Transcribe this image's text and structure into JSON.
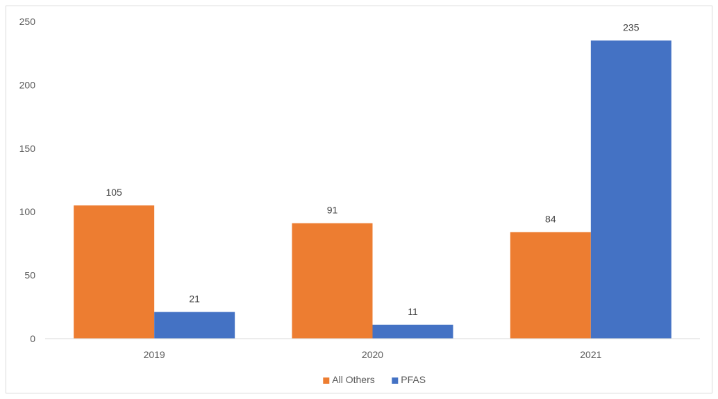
{
  "chart_data": {
    "type": "bar",
    "title": "",
    "xlabel": "",
    "ylabel": "",
    "categories": [
      "2019",
      "2020",
      "2021"
    ],
    "series": [
      {
        "name": "All Others",
        "color": "#ED7D31",
        "values": [
          105,
          91,
          84
        ]
      },
      {
        "name": "PFAS",
        "color": "#4472C4",
        "values": [
          21,
          11,
          235
        ]
      }
    ],
    "ylim": [
      0,
      250
    ],
    "yticks": [
      0,
      50,
      100,
      150,
      200,
      250
    ],
    "grid": false,
    "legend": "bottom-center",
    "data_labels": true
  }
}
